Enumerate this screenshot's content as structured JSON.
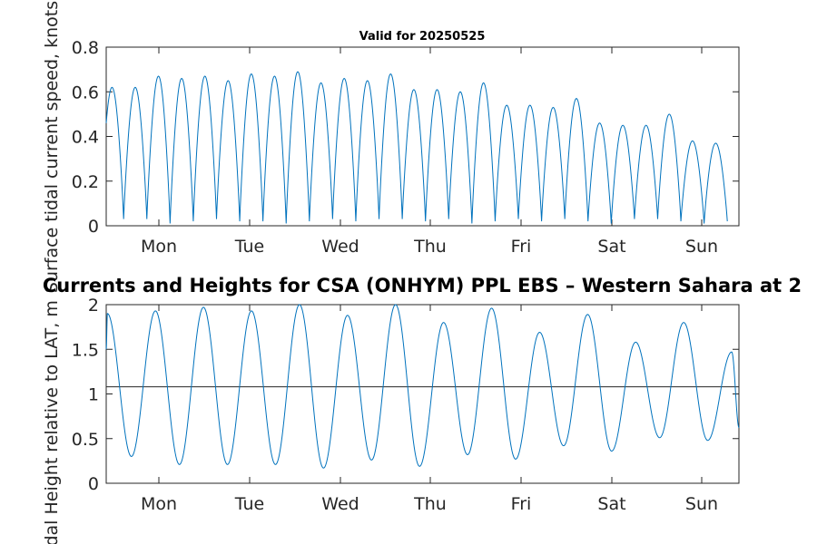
{
  "chart_data": [
    {
      "type": "line",
      "title": "Valid for 20250525",
      "ylabel": "Surface tidal current speed, knots",
      "xlabel": "",
      "categories": [
        "Mon",
        "Tue",
        "Wed",
        "Thu",
        "Fri",
        "Sat",
        "Sun"
      ],
      "ylim": [
        0,
        0.8
      ],
      "yticks": [
        "0",
        "0.2",
        "0.4",
        "0.6",
        "0.8"
      ],
      "grid": false,
      "series_color": "#0072BD",
      "series": [
        {
          "peaks": [
            0.62,
            0.62,
            0.67,
            0.66,
            0.67,
            0.65,
            0.68,
            0.67,
            0.69,
            0.64,
            0.66,
            0.65,
            0.68,
            0.61,
            0.61,
            0.6,
            0.64,
            0.54,
            0.54,
            0.53,
            0.57,
            0.46,
            0.45,
            0.45,
            0.5,
            0.38,
            0.37
          ],
          "minima": [
            0.02,
            0.03,
            0.03,
            0.01,
            0.02,
            0.03,
            0.02,
            0.02,
            0.01,
            0.02,
            0.03,
            0.02,
            0.03,
            0.03,
            0.02,
            0.03,
            0.01,
            0.02,
            0.03,
            0.02,
            0.03,
            0.02,
            0.01,
            0.03,
            0.03,
            0.02,
            0.01
          ]
        }
      ]
    },
    {
      "type": "line",
      "title": "Currents and Heights for CSA (ONHYM) PPL EBS  – Western Sahara at 2",
      "ylabel": "Tidal Height relative to LAT, m",
      "xlabel": "",
      "categories": [
        "Mon",
        "Tue",
        "Wed",
        "Thu",
        "Fri",
        "Sat",
        "Sun"
      ],
      "ylim": [
        0,
        2
      ],
      "yticks": [
        "0",
        "0.5",
        "1",
        "1.5",
        "2"
      ],
      "grid": false,
      "series_color": "#0072BD",
      "reference_line": 1.08,
      "reference_color": "#262626",
      "series": [
        {
          "extrema": [
            1.9,
            0.3,
            1.93,
            0.21,
            1.97,
            0.21,
            1.93,
            0.21,
            2.0,
            0.17,
            1.88,
            0.26,
            2.0,
            0.19,
            1.8,
            0.32,
            1.96,
            0.27,
            1.69,
            0.42,
            1.89,
            0.36,
            1.58,
            0.51,
            1.8,
            0.48,
            1.47
          ]
        }
      ]
    }
  ]
}
